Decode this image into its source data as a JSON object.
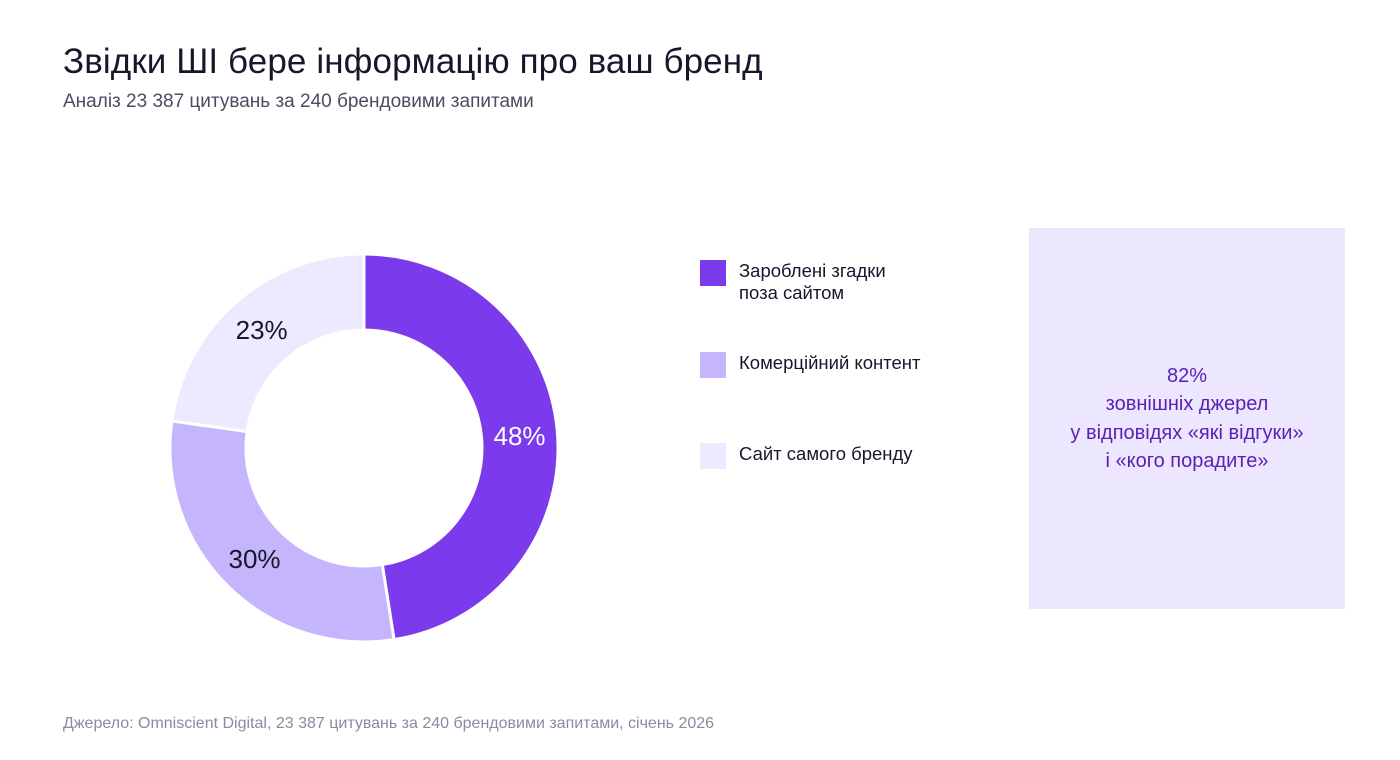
{
  "title": "Звідки ШІ бере інформацію про ваш бренд",
  "subtitle": "Аналіз 23 387 цитувань за 240 брендовими запитами",
  "chart_data": {
    "type": "pie",
    "donut": true,
    "categories": [
      "Зароблені згадки поза сайтом",
      "Комерційний контент",
      "Сайт самого бренду"
    ],
    "values": [
      48,
      30,
      23
    ],
    "labels": [
      "48%",
      "30%",
      "23%"
    ],
    "colors": [
      "#7c3aed",
      "#c4b5fd",
      "#ede9fe"
    ],
    "label_colors": [
      "#ffffff",
      "#17172b",
      "#17172b"
    ],
    "legend_position": "right"
  },
  "legend": [
    {
      "label_line1": "Зароблені згадки",
      "label_line2": "поза сайтом",
      "color": "#7c3aed"
    },
    {
      "label_line1": "Комерційний контент",
      "label_line2": "",
      "color": "#c4b5fd"
    },
    {
      "label_line1": "Сайт самого бренду",
      "label_line2": "",
      "color": "#ede9fe"
    }
  ],
  "callout": {
    "value": "82%",
    "line1": "зовнішніх джерел",
    "line2": "у відповідях «які відгуки»",
    "line3": "і «кого порадите»"
  },
  "source": "Джерело: Omniscient Digital, 23 387 цитувань за 240 брендовими запитами, січень 2026"
}
